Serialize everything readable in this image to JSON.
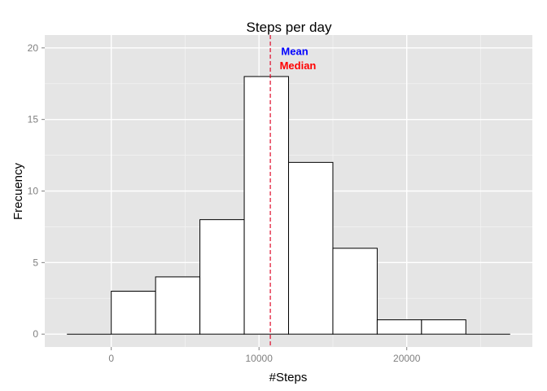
{
  "chart_data": {
    "type": "bar",
    "title": "Steps per day",
    "xlabel": "#Steps",
    "ylabel": "Frecuency",
    "bins": [
      {
        "x0": -3000,
        "x1": 0,
        "count": 0
      },
      {
        "x0": 0,
        "x1": 3000,
        "count": 3
      },
      {
        "x0": 3000,
        "x1": 6000,
        "count": 4
      },
      {
        "x0": 6000,
        "x1": 9000,
        "count": 8
      },
      {
        "x0": 9000,
        "x1": 12000,
        "count": 18
      },
      {
        "x0": 12000,
        "x1": 15000,
        "count": 12
      },
      {
        "x0": 15000,
        "x1": 18000,
        "count": 6
      },
      {
        "x0": 18000,
        "x1": 21000,
        "count": 1
      },
      {
        "x0": 21000,
        "x1": 24000,
        "count": 1
      },
      {
        "x0": 24000,
        "x1": 27000,
        "count": 0
      }
    ],
    "xlim": [
      -4500,
      28500
    ],
    "ylim": [
      -0.9,
      20.9
    ],
    "x_ticks": [
      0,
      10000,
      20000
    ],
    "y_ticks": [
      0,
      5,
      10,
      15,
      20
    ],
    "mean": 10766,
    "median": 10765,
    "grid": true,
    "annotations": [
      {
        "label": "Mean",
        "x": 11500,
        "y": 19.7,
        "color": "#0000ff"
      },
      {
        "label": "Median",
        "x": 11400,
        "y": 18.7,
        "color": "#ff0000"
      }
    ],
    "colors": {
      "panel_bg": "#e5e5e5",
      "grid": "#ffffff",
      "bar_fill": "#ffffff",
      "bar_stroke": "#000000",
      "mean_line": "#0000ff",
      "median_line": "#ff0000"
    }
  }
}
